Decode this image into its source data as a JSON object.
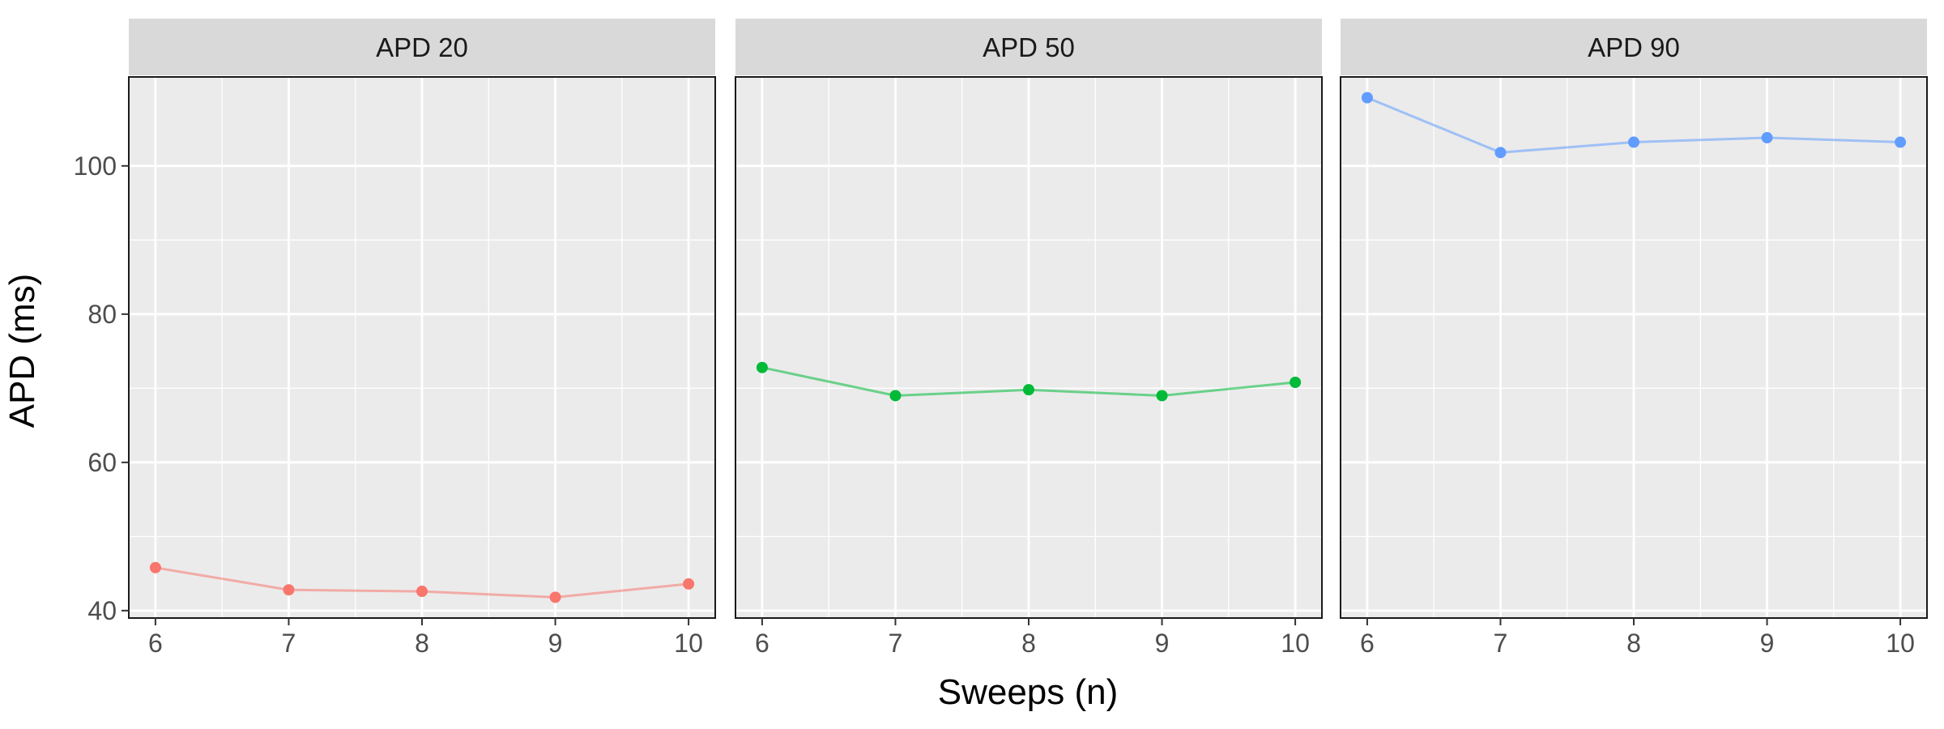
{
  "chart_data": {
    "type": "line",
    "xlabel": "Sweeps (n)",
    "ylabel": "APD (ms)",
    "x": [
      6,
      7,
      8,
      9,
      10
    ],
    "xlim": [
      5.8,
      10.2
    ],
    "ylim": [
      39,
      112
    ],
    "y_ticks": [
      40,
      60,
      80,
      100
    ],
    "grid": true,
    "legend": "none",
    "panels": [
      {
        "strip": "APD 20",
        "color": "#F8766D",
        "values": [
          45.8,
          42.8,
          42.6,
          41.8,
          43.6
        ]
      },
      {
        "strip": "APD 50",
        "color": "#00BA38",
        "values": [
          72.8,
          69.0,
          69.8,
          69.0,
          70.8
        ]
      },
      {
        "strip": "APD 90",
        "color": "#619CFF",
        "values": [
          109.2,
          101.8,
          103.2,
          103.8,
          103.2
        ]
      }
    ]
  }
}
